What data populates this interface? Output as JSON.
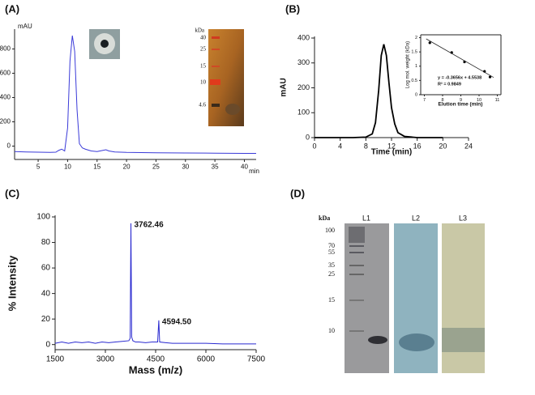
{
  "panels": [
    "(A)",
    "(B)",
    "(C)",
    "(D)"
  ],
  "gel_a": {
    "unit": "kDa",
    "markers": [
      "40",
      "25",
      "15",
      "10",
      "4.6"
    ]
  },
  "gel_d": {
    "unit": "kDa",
    "markers": [
      "100",
      "70",
      "55",
      "35",
      "25",
      "15",
      "10"
    ],
    "lanes": [
      "L1",
      "L2",
      "L3"
    ]
  },
  "chart_data": [
    {
      "type": "line",
      "x_label": "min",
      "y_label": "mAU",
      "color": "#3a3ad8",
      "x": [
        1,
        3,
        5,
        7,
        8,
        8.5,
        9,
        9.5,
        10,
        10.4,
        10.8,
        11.2,
        11.6,
        12,
        12.5,
        13,
        14,
        15,
        16,
        16.5,
        17,
        18,
        20,
        25,
        30,
        35,
        40,
        42
      ],
      "values": [
        -45,
        -48,
        -50,
        -52,
        -50,
        -35,
        -25,
        -40,
        150,
        700,
        910,
        780,
        300,
        20,
        -15,
        -25,
        -40,
        -45,
        -35,
        -30,
        -40,
        -48,
        -52,
        -55,
        -57,
        -58,
        -60,
        -60
      ],
      "xlim": [
        1,
        42
      ],
      "xticks": [
        5,
        10,
        15,
        20,
        25,
        30,
        35,
        40
      ],
      "ylim": [
        -110,
        950
      ],
      "yticks": [
        0,
        200,
        400,
        600,
        800
      ]
    },
    {
      "type": "line",
      "x_label": "Time (min)",
      "y_label": "mAU",
      "color": "#000000",
      "x": [
        0,
        6,
        8,
        9,
        9.5,
        10,
        10.4,
        10.8,
        11.2,
        11.6,
        12,
        12.5,
        13,
        14,
        16,
        20
      ],
      "values": [
        0,
        0,
        2,
        15,
        60,
        190,
        330,
        375,
        330,
        220,
        120,
        55,
        20,
        5,
        0,
        0
      ],
      "xlim": [
        0,
        24
      ],
      "xticks": [
        0,
        4,
        8,
        12,
        16,
        20,
        24
      ],
      "ylim": [
        0,
        400
      ],
      "yticks": [
        0,
        100,
        200,
        300,
        400
      ]
    },
    {
      "type": "scatter",
      "x_label": "Elution time (min)",
      "y_label": "Log mol. weight (kDa)",
      "color": "#000000",
      "x": [
        7.3,
        8.5,
        9.2,
        10.3,
        10.6
      ],
      "values": [
        1.82,
        1.48,
        1.15,
        0.82,
        0.62
      ],
      "fit": {
        "slope": -0.3656,
        "intercept": 4.5538
      },
      "annotations": [
        "y = -0.3656x + 4.5538",
        "R² = 0.9849"
      ],
      "xlim": [
        6.8,
        11.2
      ],
      "xticks": [
        7,
        8,
        9,
        10,
        11
      ],
      "ylim": [
        0,
        2.1
      ],
      "yticks": [
        0,
        0.5,
        1,
        1.5,
        2
      ]
    },
    {
      "type": "line",
      "x_label": "Mass (m/z)",
      "y_label": "% Intensity",
      "color": "#2a2ad0",
      "x": [
        1500,
        1700,
        1900,
        2100,
        2300,
        2500,
        2700,
        2900,
        3100,
        3300,
        3500,
        3700,
        3740,
        3762.46,
        3785,
        3820,
        3900,
        4000,
        4200,
        4400,
        4560,
        4594.5,
        4620,
        4800,
        5000,
        5500,
        6000,
        6500,
        7000,
        7500
      ],
      "values": [
        1,
        2,
        1,
        2,
        1.5,
        2,
        1,
        2,
        1.5,
        2,
        2.5,
        3,
        5,
        95,
        6,
        3,
        2,
        2,
        1.5,
        2,
        2,
        19,
        2,
        1.5,
        1,
        1,
        1,
        0.5,
        0.5,
        0.5
      ],
      "annotations": [
        {
          "text": "3762.46",
          "x": 3762.46
        },
        {
          "text": "4594.50",
          "x": 4594.5
        }
      ],
      "xlim": [
        1500,
        7500
      ],
      "xticks": [
        1500,
        3000,
        4500,
        6000,
        7500
      ],
      "ylim": [
        -4,
        100
      ],
      "yticks": [
        0,
        20,
        40,
        60,
        80,
        100
      ]
    }
  ]
}
